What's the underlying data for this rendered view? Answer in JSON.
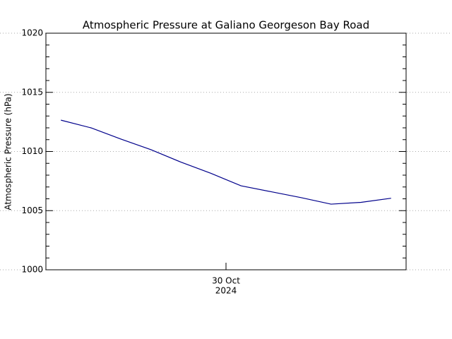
{
  "chart_data": {
    "type": "line",
    "title": "Atmospheric Pressure at Galiano Georgeson Bay Road",
    "ylabel": "Atmospheric Pressure (hPa)",
    "x": [
      0,
      2,
      4,
      6,
      8,
      10,
      12,
      14,
      16,
      18,
      20,
      22
    ],
    "series": [
      {
        "name": "Atmospheric Pressure",
        "color": "#00008b",
        "values": [
          1012.65,
          1012.0,
          1011.05,
          1010.15,
          1009.1,
          1008.15,
          1007.1,
          1006.6,
          1006.1,
          1005.55,
          1005.7,
          1006.05
        ]
      }
    ],
    "xlim": [
      -1,
      23
    ],
    "xticks": [
      {
        "value": 11,
        "label": "30 Oct"
      }
    ],
    "xtick_year": "2024",
    "ylim": [
      1000,
      1020
    ],
    "yticks": [
      1000,
      1005,
      1010,
      1015,
      1020
    ],
    "grid": true
  }
}
